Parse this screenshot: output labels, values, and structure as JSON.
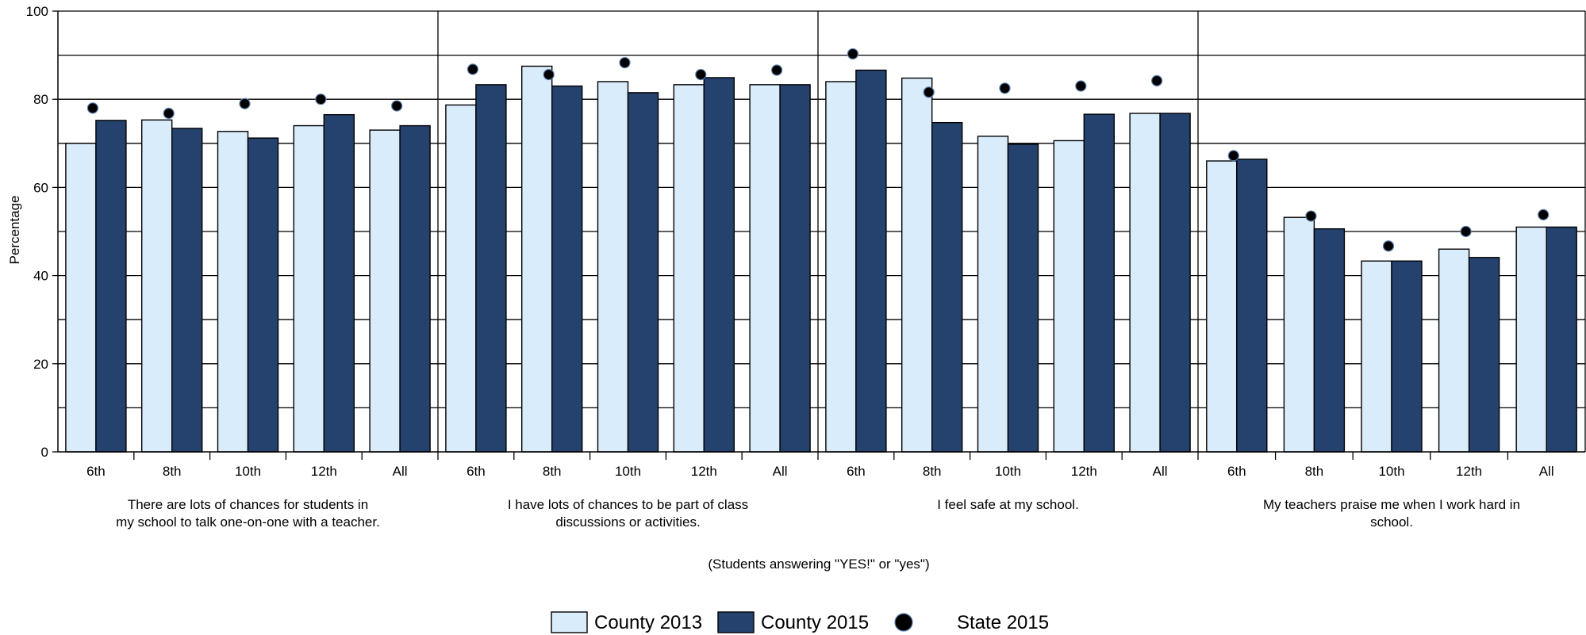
{
  "chart_data": {
    "type": "bar",
    "ylabel": "Percentage",
    "xlabel": "(Students answering \"YES!\" or \"yes\")",
    "ylim": [
      0,
      100
    ],
    "yticks": [
      0,
      20,
      40,
      60,
      80,
      100
    ],
    "grid": true,
    "legend_position": "bottom",
    "colors": {
      "County 2013": "#d9ecfb",
      "County 2015": "#25426e",
      "State 2015": "#000000"
    },
    "groups": [
      {
        "label_lines": [
          "There are lots of chances for students in",
          "my school to talk one-on-one with a teacher."
        ],
        "categories": [
          "6th",
          "8th",
          "10th",
          "12th",
          "All"
        ],
        "series": [
          {
            "name": "County 2013",
            "kind": "bar",
            "values": [
              70,
              75.3,
              72.7,
              74,
              73
            ]
          },
          {
            "name": "County 2015",
            "kind": "bar",
            "values": [
              75.2,
              73.4,
              71.2,
              76.5,
              74
            ]
          },
          {
            "name": "State 2015",
            "kind": "point",
            "values": [
              78,
              76.8,
              79,
              80,
              78.5
            ]
          }
        ]
      },
      {
        "label_lines": [
          "I have lots of chances to be part of class",
          "discussions or activities."
        ],
        "categories": [
          "6th",
          "8th",
          "10th",
          "12th",
          "All"
        ],
        "series": [
          {
            "name": "County 2013",
            "kind": "bar",
            "values": [
              78.7,
              87.5,
              84,
              83.3,
              83.3
            ]
          },
          {
            "name": "County 2015",
            "kind": "bar",
            "values": [
              83.3,
              83,
              81.5,
              84.9,
              83.3
            ]
          },
          {
            "name": "State 2015",
            "kind": "point",
            "values": [
              86.8,
              85.6,
              88.3,
              85.6,
              86.6
            ]
          }
        ]
      },
      {
        "label_lines": [
          "I feel safe at my school."
        ],
        "categories": [
          "6th",
          "8th",
          "10th",
          "12th",
          "All"
        ],
        "series": [
          {
            "name": "County 2013",
            "kind": "bar",
            "values": [
              84,
              84.8,
              71.6,
              70.6,
              76.8
            ]
          },
          {
            "name": "County 2015",
            "kind": "bar",
            "values": [
              86.6,
              74.7,
              69.8,
              76.6,
              76.8
            ]
          },
          {
            "name": "State 2015",
            "kind": "point",
            "values": [
              90.3,
              81.6,
              82.5,
              83,
              84.2
            ]
          }
        ]
      },
      {
        "label_lines": [
          "My teachers praise me when I work hard in",
          "school."
        ],
        "categories": [
          "6th",
          "8th",
          "10th",
          "12th",
          "All"
        ],
        "series": [
          {
            "name": "County 2013",
            "kind": "bar",
            "values": [
              66,
              53.2,
              43.3,
              46,
              51
            ]
          },
          {
            "name": "County 2015",
            "kind": "bar",
            "values": [
              66.4,
              50.6,
              43.3,
              44.1,
              51
            ]
          },
          {
            "name": "State 2015",
            "kind": "point",
            "values": [
              67.2,
              53.5,
              46.7,
              50,
              53.8
            ]
          }
        ]
      }
    ],
    "legend": [
      "County 2013",
      "County 2015",
      "State 2015"
    ]
  }
}
